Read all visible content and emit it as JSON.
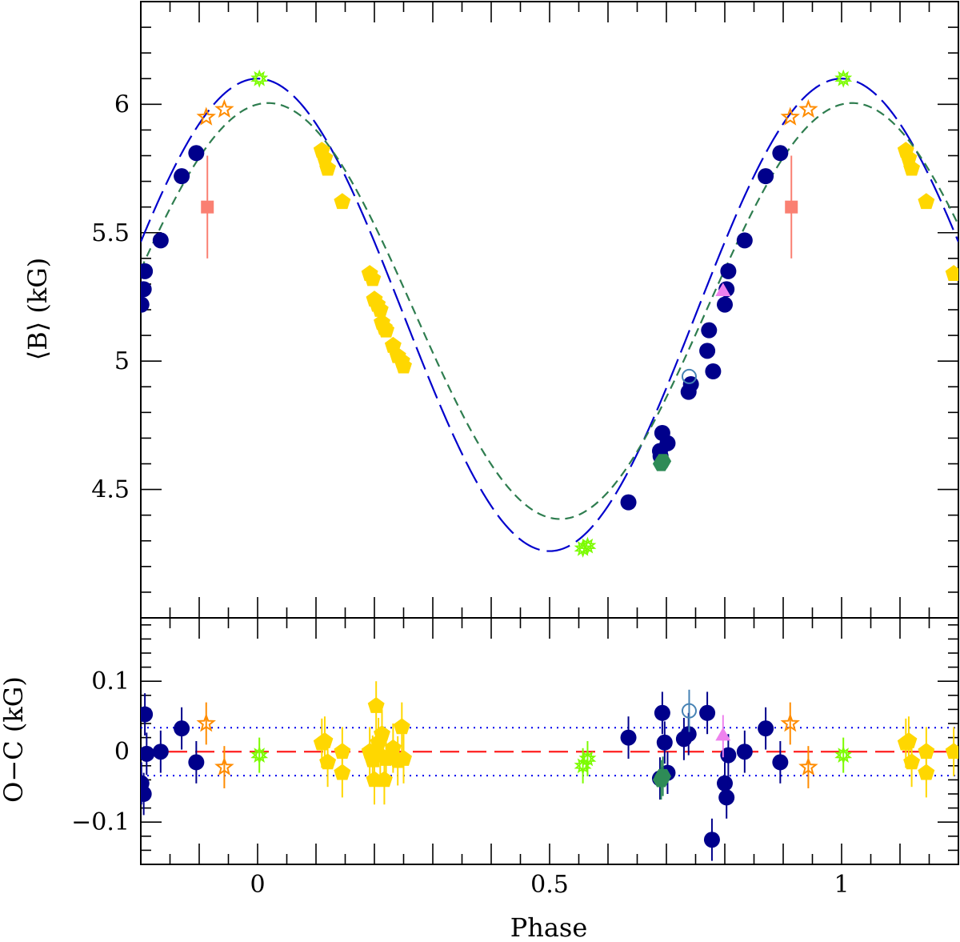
{
  "chart_data": [
    {
      "id": "top",
      "type": "scatter",
      "xlabel": "",
      "ylabel": "⟨B⟩ (kG)",
      "xlim": [
        -0.2,
        1.2
      ],
      "ylim": [
        4.0,
        6.4
      ],
      "yticks_labeled": [
        4.5,
        5,
        5.5,
        6
      ],
      "ytick_labels": [
        "4.5",
        "5",
        "5.5",
        "6"
      ],
      "curves": [
        {
          "style": "long-dash",
          "color": "#0000cc",
          "mean": 5.18,
          "amplitude": 0.92,
          "phase_shift": 0.0
        },
        {
          "style": "short-dash",
          "color": "#2e7d4f",
          "mean": 5.195,
          "amplitude": 0.81,
          "phase_shift": 0.018
        }
      ],
      "series": [
        {
          "marker": "filled-circle",
          "color": "#00008b",
          "points": [
            [
              -0.199,
              5.22
            ],
            [
              -0.195,
              5.28
            ],
            [
              -0.193,
              5.35
            ],
            [
              -0.166,
              5.47
            ],
            [
              -0.13,
              5.72
            ],
            [
              -0.105,
              5.81
            ],
            [
              0.635,
              4.45
            ],
            [
              0.689,
              4.65
            ],
            [
              0.69,
              4.63
            ],
            [
              0.693,
              4.72
            ],
            [
              0.702,
              4.68
            ],
            [
              0.738,
              4.88
            ],
            [
              0.742,
              4.91
            ],
            [
              0.77,
              5.04
            ],
            [
              0.773,
              5.12
            ],
            [
              0.78,
              4.96
            ],
            [
              0.8,
              5.22
            ],
            [
              0.803,
              5.28
            ],
            [
              0.806,
              5.35
            ],
            [
              0.834,
              5.47
            ],
            [
              0.87,
              5.72
            ],
            [
              0.895,
              5.81
            ]
          ]
        },
        {
          "marker": "filled-pentagon",
          "color": "#ffd700",
          "points": [
            [
              0.11,
              5.82
            ],
            [
              0.115,
              5.79
            ],
            [
              0.12,
              5.75
            ],
            [
              0.145,
              5.62
            ],
            [
              0.192,
              5.34
            ],
            [
              0.197,
              5.32
            ],
            [
              0.2,
              5.24
            ],
            [
              0.205,
              5.22
            ],
            [
              0.21,
              5.2
            ],
            [
              0.213,
              5.15
            ],
            [
              0.217,
              5.13
            ],
            [
              0.22,
              5.12
            ],
            [
              0.232,
              5.06
            ],
            [
              0.24,
              5.02
            ],
            [
              0.247,
              5.0
            ],
            [
              0.25,
              4.98
            ],
            [
              1.11,
              5.82
            ],
            [
              1.115,
              5.79
            ],
            [
              1.12,
              5.75
            ],
            [
              1.145,
              5.62
            ],
            [
              1.192,
              5.34
            ]
          ]
        },
        {
          "marker": "open-star",
          "color": "#ff8c00",
          "points": [
            [
              -0.088,
              5.95
            ],
            [
              -0.057,
              5.98
            ],
            [
              0.912,
              5.95
            ],
            [
              0.943,
              5.98
            ]
          ]
        },
        {
          "marker": "asterisk",
          "color": "#7cfc00",
          "points": [
            [
              0.003,
              6.1
            ],
            [
              0.557,
              4.27
            ],
            [
              0.565,
              4.28
            ],
            [
              1.003,
              6.1
            ]
          ]
        },
        {
          "marker": "open-circle",
          "color": "#4682b4",
          "points": [
            [
              0.739,
              4.94
            ]
          ]
        },
        {
          "marker": "filled-hexagon",
          "color": "#2e8b57",
          "points": [
            [
              0.691,
              4.6
            ],
            [
              0.694,
              4.61
            ]
          ]
        },
        {
          "marker": "filled-triangle",
          "color": "#ee82ee",
          "points": [
            [
              0.797,
              5.27
            ]
          ]
        },
        {
          "marker": "filled-square",
          "color": "#fa8072",
          "error": 0.2,
          "points": [
            [
              -0.086,
              5.6
            ],
            [
              0.914,
              5.6
            ]
          ]
        }
      ]
    },
    {
      "id": "bottom",
      "type": "scatter",
      "xlabel": "Phase",
      "ylabel": "O−C (kG)",
      "xlim": [
        -0.2,
        1.2
      ],
      "ylim": [
        -0.16,
        0.19
      ],
      "xticks_labeled": [
        0,
        0.5,
        1
      ],
      "xtick_labels": [
        "0",
        "0.5",
        "1"
      ],
      "yticks_labeled": [
        -0.1,
        0,
        0.1
      ],
      "ytick_labels": [
        "−0.1",
        "0",
        "0.1"
      ],
      "reference_lines": [
        {
          "y": 0,
          "style": "dashed",
          "color": "#ff2a2a"
        },
        {
          "y": 0.034,
          "style": "dotted",
          "color": "#0000ee"
        },
        {
          "y": -0.034,
          "style": "dotted",
          "color": "#0000ee"
        }
      ],
      "series": [
        {
          "marker": "filled-circle",
          "color": "#00008b",
          "error": 0.03,
          "points": [
            [
              -0.199,
              -0.045
            ],
            [
              -0.195,
              -0.06
            ],
            [
              -0.193,
              0.053
            ],
            [
              -0.19,
              -0.003
            ],
            [
              -0.166,
              0.0
            ],
            [
              -0.13,
              0.033
            ],
            [
              -0.105,
              -0.015
            ],
            [
              0.635,
              0.02
            ],
            [
              0.689,
              -0.038
            ],
            [
              0.693,
              0.055
            ],
            [
              0.697,
              0.013
            ],
            [
              0.702,
              -0.03
            ],
            [
              0.73,
              0.018
            ],
            [
              0.738,
              0.025
            ],
            [
              0.77,
              0.055
            ],
            [
              0.778,
              -0.125
            ],
            [
              0.8,
              -0.045
            ],
            [
              0.803,
              -0.065
            ],
            [
              0.806,
              -0.005
            ],
            [
              0.834,
              0.0
            ],
            [
              0.87,
              0.033
            ],
            [
              0.895,
              -0.015
            ]
          ]
        },
        {
          "marker": "filled-pentagon",
          "color": "#ffd700",
          "error": 0.035,
          "points": [
            [
              0.11,
              0.012
            ],
            [
              0.115,
              0.015
            ],
            [
              0.12,
              -0.015
            ],
            [
              0.145,
              -0.03
            ],
            [
              0.145,
              0.0
            ],
            [
              0.192,
              0.0
            ],
            [
              0.197,
              -0.012
            ],
            [
              0.2,
              -0.04
            ],
            [
              0.203,
              0.065
            ],
            [
              0.207,
              0.013
            ],
            [
              0.21,
              -0.005
            ],
            [
              0.213,
              0.025
            ],
            [
              0.217,
              -0.04
            ],
            [
              0.22,
              -0.01
            ],
            [
              0.232,
              0.005
            ],
            [
              0.24,
              -0.013
            ],
            [
              0.247,
              0.035
            ],
            [
              0.25,
              -0.01
            ],
            [
              1.11,
              0.012
            ],
            [
              1.115,
              0.015
            ],
            [
              1.12,
              -0.015
            ],
            [
              1.145,
              -0.03
            ],
            [
              1.145,
              0.0
            ],
            [
              1.192,
              0.0
            ]
          ]
        },
        {
          "marker": "open-star",
          "color": "#ff8c00",
          "error": 0.03,
          "points": [
            [
              -0.088,
              0.04
            ],
            [
              -0.057,
              -0.022
            ],
            [
              0.912,
              0.04
            ],
            [
              0.943,
              -0.022
            ]
          ]
        },
        {
          "marker": "asterisk",
          "color": "#7cfc00",
          "error": 0.025,
          "points": [
            [
              0.003,
              -0.005
            ],
            [
              0.557,
              -0.02
            ],
            [
              0.565,
              -0.01
            ],
            [
              1.003,
              -0.005
            ]
          ]
        },
        {
          "marker": "open-circle",
          "color": "#4682b4",
          "error": 0.03,
          "points": [
            [
              0.739,
              0.058
            ]
          ]
        },
        {
          "marker": "filled-hexagon",
          "color": "#2e8b57",
          "error": 0.028,
          "points": [
            [
              0.691,
              -0.04
            ],
            [
              0.694,
              -0.035
            ]
          ]
        },
        {
          "marker": "filled-triangle",
          "color": "#ee82ee",
          "error": 0.03,
          "points": [
            [
              0.797,
              0.022
            ]
          ]
        }
      ]
    }
  ]
}
